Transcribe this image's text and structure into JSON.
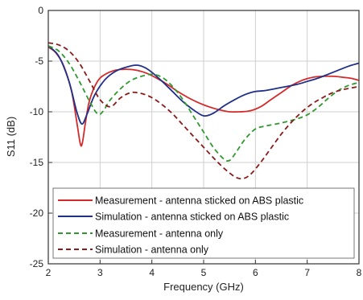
{
  "chart_data": {
    "type": "line",
    "xlabel": "Frequency (GHz)",
    "ylabel": "S11 (dB)",
    "xlim": [
      2,
      8
    ],
    "ylim": [
      -25,
      0
    ],
    "xticks": [
      2,
      3,
      4,
      5,
      6,
      7,
      8
    ],
    "yticks": [
      0,
      -5,
      -10,
      -15,
      -20,
      -25
    ],
    "grid": true,
    "legend_position": "bottom-right",
    "series": [
      {
        "name": "Measurement - antenna sticked on ABS plastic",
        "color": "#d42a2a",
        "dash": "solid",
        "x": [
          2.0,
          2.15,
          2.3,
          2.45,
          2.55,
          2.62,
          2.66,
          2.72,
          2.8,
          2.95,
          3.1,
          3.3,
          3.5,
          3.7,
          3.9,
          4.1,
          4.3,
          4.5,
          4.7,
          4.9,
          5.1,
          5.3,
          5.5,
          5.7,
          5.9,
          6.1,
          6.3,
          6.5,
          6.7,
          6.9,
          7.1,
          7.3,
          7.5,
          7.7,
          7.85,
          8.0
        ],
        "y": [
          -3.6,
          -4.2,
          -5.5,
          -8.0,
          -11.0,
          -13.2,
          -13.0,
          -11.0,
          -8.8,
          -7.0,
          -6.3,
          -5.9,
          -5.8,
          -5.9,
          -6.2,
          -6.7,
          -7.3,
          -8.0,
          -8.6,
          -9.1,
          -9.5,
          -9.8,
          -10.0,
          -10.0,
          -9.9,
          -9.5,
          -8.8,
          -8.1,
          -7.4,
          -6.9,
          -6.6,
          -6.5,
          -6.5,
          -6.6,
          -6.7,
          -6.9
        ]
      },
      {
        "name": "Simulation - antenna sticked on ABS plastic",
        "color": "#1f2f8a",
        "dash": "solid",
        "x": [
          2.0,
          2.2,
          2.4,
          2.55,
          2.65,
          2.75,
          2.9,
          3.1,
          3.3,
          3.5,
          3.7,
          3.85,
          4.0,
          4.2,
          4.4,
          4.6,
          4.8,
          4.95,
          5.05,
          5.2,
          5.4,
          5.6,
          5.8,
          6.0,
          6.2,
          6.5,
          6.8,
          7.0,
          7.2,
          7.4,
          7.6,
          7.8,
          8.0
        ],
        "y": [
          -3.5,
          -4.5,
          -7.0,
          -10.0,
          -11.2,
          -10.2,
          -8.3,
          -6.8,
          -6.0,
          -5.6,
          -5.4,
          -5.6,
          -6.1,
          -7.0,
          -8.0,
          -9.0,
          -9.8,
          -10.3,
          -10.4,
          -10.1,
          -9.4,
          -8.8,
          -8.3,
          -8.0,
          -7.9,
          -7.6,
          -7.3,
          -7.0,
          -6.7,
          -6.3,
          -5.9,
          -5.5,
          -5.2
        ]
      },
      {
        "name": "Measurement - antenna only",
        "color": "#2e9a2e",
        "dash": "dashed",
        "x": [
          2.0,
          2.2,
          2.4,
          2.6,
          2.8,
          2.95,
          3.05,
          3.2,
          3.4,
          3.6,
          3.8,
          4.0,
          4.2,
          4.4,
          4.6,
          4.8,
          5.0,
          5.2,
          5.4,
          5.5,
          5.6,
          5.8,
          6.0,
          6.2,
          6.5,
          6.8,
          7.0,
          7.2,
          7.4,
          7.6,
          7.8,
          8.0
        ],
        "y": [
          -3.5,
          -4.0,
          -5.2,
          -7.0,
          -9.0,
          -10.2,
          -10.0,
          -8.8,
          -7.7,
          -6.9,
          -6.5,
          -6.3,
          -6.6,
          -7.5,
          -8.8,
          -10.4,
          -12.0,
          -13.6,
          -14.7,
          -14.8,
          -14.2,
          -12.7,
          -11.7,
          -11.4,
          -11.1,
          -10.7,
          -10.3,
          -9.6,
          -8.7,
          -7.9,
          -7.4,
          -7.1
        ]
      },
      {
        "name": "Simulation - antenna only",
        "color": "#8b1a1a",
        "dash": "dashed",
        "x": [
          2.0,
          2.2,
          2.4,
          2.6,
          2.8,
          3.0,
          3.2,
          3.4,
          3.6,
          3.8,
          4.0,
          4.2,
          4.4,
          4.6,
          4.8,
          5.0,
          5.2,
          5.4,
          5.6,
          5.75,
          5.9,
          6.1,
          6.3,
          6.5,
          6.7,
          6.9,
          7.1,
          7.3,
          7.5,
          7.7,
          7.9,
          8.0
        ],
        "y": [
          -3.2,
          -3.4,
          -4.0,
          -5.2,
          -7.0,
          -8.8,
          -9.5,
          -8.6,
          -8.1,
          -8.2,
          -8.6,
          -9.3,
          -10.2,
          -11.3,
          -12.4,
          -13.5,
          -14.6,
          -15.6,
          -16.4,
          -16.6,
          -16.2,
          -15.0,
          -13.6,
          -12.2,
          -11.0,
          -10.0,
          -9.2,
          -8.6,
          -8.1,
          -7.8,
          -7.6,
          -7.5
        ]
      }
    ]
  }
}
